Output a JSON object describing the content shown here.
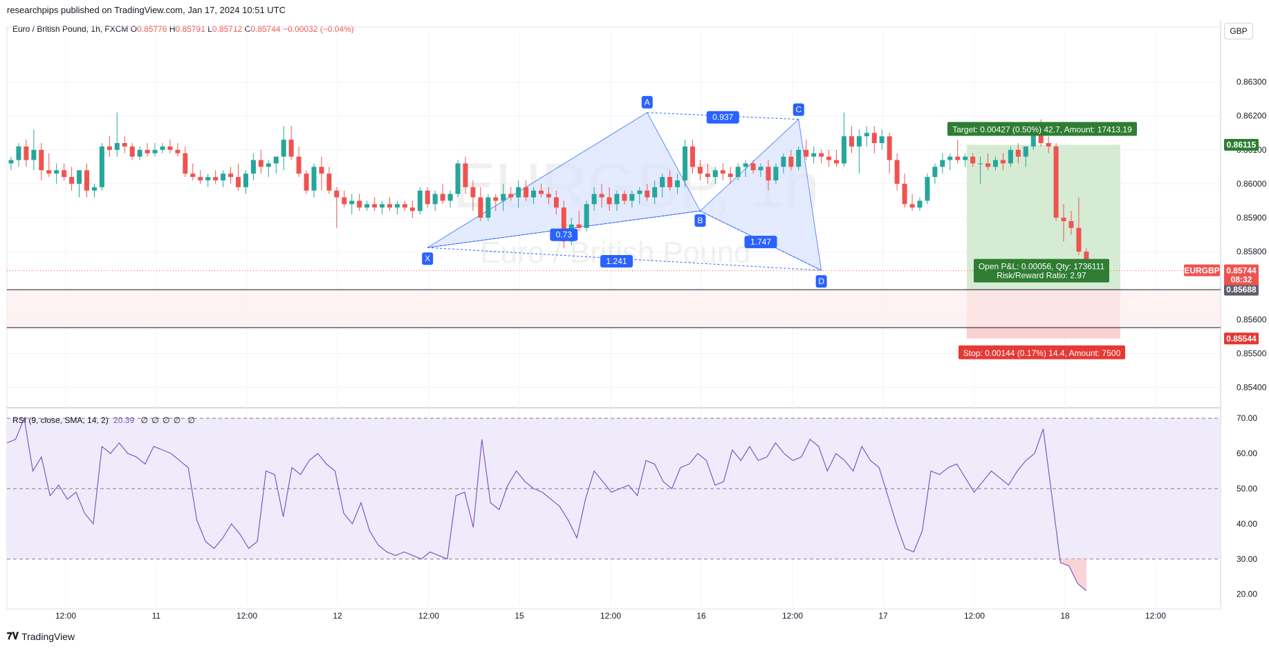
{
  "header": {
    "published": "researchpips published on TradingView.com, Jan 17, 2024 10:51 UTC",
    "symbol": "Euro / British Pound, 1h, FXCM",
    "o_label": "O",
    "o": "0.85776",
    "h_label": "H",
    "h": "0.85791",
    "l_label": "L",
    "l": "0.85712",
    "c_label": "C",
    "c": "0.85744",
    "change": "−0.00032 (−0.04%)",
    "currency": "GBP"
  },
  "watermark": {
    "ticker": "EURGBP, 1h",
    "name": "Euro / British Pound"
  },
  "footer": {
    "brand": "TradingView",
    "brand_mark": "𝟕𝐕"
  },
  "rsi_legend": {
    "label": "RSI (9, close, SMA, 14, 2)",
    "value": "20.39",
    "zeros": "∅ ∅ ∅ ∅",
    "extra": "∅"
  },
  "colors": {
    "up": "#26a69a",
    "down": "#ef5350",
    "pattern": "#2962ff",
    "pattern_fill": "#dbe5ff",
    "target_zone": "#d6ebd4",
    "stop_zone": "#fcd1d1",
    "rsi_line": "#7e57c2",
    "rsi_band": "#f0ebfa"
  },
  "chart_data": [
    {
      "type": "candlestick",
      "title": "Euro / British Pound, 1h, FXCM",
      "ylim": [
        0.8535,
        0.8645
      ],
      "y_ticks": [
        "0.86300",
        "0.86200",
        "0.86100",
        "0.86000",
        "0.85900",
        "0.85800",
        "0.85600",
        "0.85500",
        "0.85400"
      ],
      "x_ticks": [
        "12:00",
        "11",
        "12:00",
        "12",
        "12:00",
        "15",
        "12:00",
        "16",
        "12:00",
        "17",
        "12:00",
        "18",
        "12:00"
      ],
      "grid": true,
      "ohlc": [
        [
          0.8606,
          0.8608,
          0.8604,
          0.8607
        ],
        [
          0.8607,
          0.8612,
          0.8605,
          0.8611
        ],
        [
          0.8611,
          0.8613,
          0.8605,
          0.8607
        ],
        [
          0.8607,
          0.8616,
          0.8604,
          0.861
        ],
        [
          0.861,
          0.8612,
          0.8601,
          0.8604
        ],
        [
          0.8604,
          0.8609,
          0.8602,
          0.8603
        ],
        [
          0.8603,
          0.8606,
          0.86,
          0.8604
        ],
        [
          0.8604,
          0.8606,
          0.8601,
          0.8602
        ],
        [
          0.8602,
          0.8605,
          0.8598,
          0.86
        ],
        [
          0.86,
          0.8603,
          0.8596,
          0.8604
        ],
        [
          0.8604,
          0.8606,
          0.8596,
          0.8598
        ],
        [
          0.8598,
          0.86,
          0.8596,
          0.8599
        ],
        [
          0.8599,
          0.8612,
          0.8598,
          0.8611
        ],
        [
          0.8611,
          0.8614,
          0.8608,
          0.861
        ],
        [
          0.861,
          0.8621,
          0.8608,
          0.8612
        ],
        [
          0.8612,
          0.8614,
          0.8609,
          0.8611
        ],
        [
          0.8611,
          0.8612,
          0.8607,
          0.8608
        ],
        [
          0.8608,
          0.8611,
          0.8607,
          0.861
        ],
        [
          0.861,
          0.8612,
          0.8608,
          0.8609
        ],
        [
          0.8609,
          0.8612,
          0.8608,
          0.861
        ],
        [
          0.861,
          0.8612,
          0.8609,
          0.8611
        ],
        [
          0.8611,
          0.8613,
          0.8609,
          0.861
        ],
        [
          0.861,
          0.8612,
          0.8608,
          0.8609
        ],
        [
          0.8609,
          0.8611,
          0.8602,
          0.8603
        ],
        [
          0.8603,
          0.8606,
          0.8601,
          0.8602
        ],
        [
          0.8602,
          0.8604,
          0.86,
          0.8601
        ],
        [
          0.8601,
          0.8603,
          0.8599,
          0.8602
        ],
        [
          0.8602,
          0.8604,
          0.86,
          0.8601
        ],
        [
          0.8601,
          0.8604,
          0.8599,
          0.8603
        ],
        [
          0.8603,
          0.8605,
          0.86,
          0.8602
        ],
        [
          0.8602,
          0.8606,
          0.8598,
          0.8599
        ],
        [
          0.8599,
          0.8604,
          0.8597,
          0.8603
        ],
        [
          0.8603,
          0.8609,
          0.8601,
          0.8607
        ],
        [
          0.8607,
          0.861,
          0.8603,
          0.8605
        ],
        [
          0.8605,
          0.8607,
          0.8602,
          0.8606
        ],
        [
          0.8606,
          0.8608,
          0.8603,
          0.8608
        ],
        [
          0.8608,
          0.8617,
          0.8604,
          0.8613
        ],
        [
          0.8613,
          0.8617,
          0.8607,
          0.8608
        ],
        [
          0.8608,
          0.8611,
          0.8602,
          0.8603
        ],
        [
          0.8603,
          0.8604,
          0.8597,
          0.8598
        ],
        [
          0.8598,
          0.8606,
          0.8596,
          0.8605
        ],
        [
          0.8605,
          0.8608,
          0.8598,
          0.8603
        ],
        [
          0.8603,
          0.8605,
          0.8597,
          0.8598
        ],
        [
          0.8598,
          0.8599,
          0.8587,
          0.8596
        ],
        [
          0.8596,
          0.8598,
          0.8593,
          0.8594
        ],
        [
          0.8594,
          0.8597,
          0.8591,
          0.8595
        ],
        [
          0.8595,
          0.8597,
          0.8592,
          0.8593
        ],
        [
          0.8593,
          0.8595,
          0.8592,
          0.8594
        ],
        [
          0.8594,
          0.8596,
          0.8592,
          0.8593
        ],
        [
          0.8593,
          0.8595,
          0.8591,
          0.8594
        ],
        [
          0.8594,
          0.8596,
          0.8592,
          0.8593
        ],
        [
          0.8593,
          0.8595,
          0.8591,
          0.8594
        ],
        [
          0.8594,
          0.8595,
          0.8592,
          0.8593
        ],
        [
          0.8593,
          0.8595,
          0.859,
          0.8592
        ],
        [
          0.8592,
          0.8599,
          0.8591,
          0.8598
        ],
        [
          0.8598,
          0.8599,
          0.8593,
          0.8594
        ],
        [
          0.8594,
          0.8598,
          0.8592,
          0.8597
        ],
        [
          0.8597,
          0.86,
          0.8594,
          0.8595
        ],
        [
          0.8595,
          0.8598,
          0.8593,
          0.8597
        ],
        [
          0.8597,
          0.8607,
          0.8596,
          0.8606
        ],
        [
          0.8606,
          0.8608,
          0.8597,
          0.8599
        ],
        [
          0.8599,
          0.8601,
          0.8592,
          0.8596
        ],
        [
          0.8596,
          0.8599,
          0.8589,
          0.859
        ],
        [
          0.859,
          0.8597,
          0.8589,
          0.8596
        ],
        [
          0.8596,
          0.8597,
          0.8592,
          0.8595
        ],
        [
          0.8595,
          0.86,
          0.8592,
          0.8597
        ],
        [
          0.8597,
          0.8599,
          0.8595,
          0.8596
        ],
        [
          0.8596,
          0.8601,
          0.8593,
          0.8599
        ],
        [
          0.8599,
          0.8601,
          0.8595,
          0.8596
        ],
        [
          0.8596,
          0.8599,
          0.8594,
          0.8598
        ],
        [
          0.8598,
          0.86,
          0.8596,
          0.8597
        ],
        [
          0.8597,
          0.8599,
          0.8594,
          0.8596
        ],
        [
          0.8596,
          0.8598,
          0.8591,
          0.8593
        ],
        [
          0.8593,
          0.8595,
          0.8581,
          0.8583
        ],
        [
          0.8583,
          0.859,
          0.8582,
          0.8588
        ],
        [
          0.8588,
          0.8592,
          0.8586,
          0.8587
        ],
        [
          0.8587,
          0.8595,
          0.8586,
          0.8594
        ],
        [
          0.8594,
          0.8599,
          0.8592,
          0.8597
        ],
        [
          0.8597,
          0.86,
          0.8593,
          0.8596
        ],
        [
          0.8596,
          0.8599,
          0.8592,
          0.8594
        ],
        [
          0.8594,
          0.8598,
          0.8592,
          0.8597
        ],
        [
          0.8597,
          0.8598,
          0.8594,
          0.8595
        ],
        [
          0.8595,
          0.8598,
          0.8593,
          0.8597
        ],
        [
          0.8597,
          0.8599,
          0.8594,
          0.8598
        ],
        [
          0.8598,
          0.86,
          0.8595,
          0.8596
        ],
        [
          0.8596,
          0.8601,
          0.8594,
          0.8599
        ],
        [
          0.8599,
          0.8603,
          0.8596,
          0.8602
        ],
        [
          0.8602,
          0.8604,
          0.8598,
          0.8599
        ],
        [
          0.8599,
          0.8603,
          0.8597,
          0.8601
        ],
        [
          0.8601,
          0.8613,
          0.8599,
          0.8611
        ],
        [
          0.8611,
          0.8613,
          0.8603,
          0.8605
        ],
        [
          0.8605,
          0.8607,
          0.8601,
          0.8603
        ],
        [
          0.8603,
          0.8606,
          0.86,
          0.8602
        ],
        [
          0.8602,
          0.8605,
          0.86,
          0.8604
        ],
        [
          0.8604,
          0.8606,
          0.8601,
          0.8603
        ],
        [
          0.8603,
          0.8605,
          0.86,
          0.8602
        ],
        [
          0.8602,
          0.8606,
          0.8601,
          0.8605
        ],
        [
          0.8605,
          0.8607,
          0.8602,
          0.8606
        ],
        [
          0.8606,
          0.8607,
          0.8603,
          0.8604
        ],
        [
          0.8604,
          0.8606,
          0.8602,
          0.8605
        ],
        [
          0.8605,
          0.8607,
          0.8598,
          0.8601
        ],
        [
          0.8601,
          0.8606,
          0.86,
          0.8605
        ],
        [
          0.8605,
          0.8609,
          0.8603,
          0.8608
        ],
        [
          0.8608,
          0.861,
          0.8604,
          0.8605
        ],
        [
          0.8605,
          0.8611,
          0.8604,
          0.861
        ],
        [
          0.861,
          0.8613,
          0.8607,
          0.8608
        ],
        [
          0.8608,
          0.8611,
          0.8606,
          0.8609
        ],
        [
          0.8609,
          0.861,
          0.8606,
          0.8608
        ],
        [
          0.8608,
          0.861,
          0.8605,
          0.8607
        ],
        [
          0.8607,
          0.861,
          0.8605,
          0.8606
        ],
        [
          0.8606,
          0.8621,
          0.8605,
          0.8614
        ],
        [
          0.8614,
          0.8617,
          0.8609,
          0.8611
        ],
        [
          0.8611,
          0.8616,
          0.8603,
          0.8614
        ],
        [
          0.8614,
          0.8617,
          0.8611,
          0.8615
        ],
        [
          0.8615,
          0.8617,
          0.8609,
          0.8612
        ],
        [
          0.8612,
          0.8616,
          0.861,
          0.8614
        ],
        [
          0.8614,
          0.8615,
          0.8603,
          0.8607
        ],
        [
          0.8607,
          0.8609,
          0.8598,
          0.86
        ],
        [
          0.86,
          0.8603,
          0.8593,
          0.8594
        ],
        [
          0.8594,
          0.8597,
          0.8592,
          0.8593
        ],
        [
          0.8593,
          0.8596,
          0.8592,
          0.8595
        ],
        [
          0.8595,
          0.8603,
          0.8594,
          0.8602
        ],
        [
          0.8602,
          0.8606,
          0.86,
          0.8605
        ],
        [
          0.8605,
          0.8609,
          0.8603,
          0.8607
        ],
        [
          0.8607,
          0.8609,
          0.8604,
          0.8608
        ],
        [
          0.8608,
          0.8613,
          0.8606,
          0.8607
        ],
        [
          0.8607,
          0.8609,
          0.8605,
          0.8608
        ],
        [
          0.8608,
          0.8609,
          0.8605,
          0.8606
        ],
        [
          0.8606,
          0.8608,
          0.86,
          0.8606
        ],
        [
          0.8606,
          0.8609,
          0.8604,
          0.8605
        ],
        [
          0.8605,
          0.8608,
          0.8604,
          0.8607
        ],
        [
          0.8607,
          0.8609,
          0.8604,
          0.8606
        ],
        [
          0.8606,
          0.8611,
          0.8605,
          0.861
        ],
        [
          0.861,
          0.8612,
          0.8606,
          0.8608
        ],
        [
          0.8608,
          0.8611,
          0.8605,
          0.8611
        ],
        [
          0.8611,
          0.8617,
          0.861,
          0.8615
        ],
        [
          0.8615,
          0.8619,
          0.8611,
          0.8612
        ],
        [
          0.8612,
          0.8614,
          0.8609,
          0.8611
        ],
        [
          0.8611,
          0.8612,
          0.8589,
          0.859
        ],
        [
          0.859,
          0.8594,
          0.8583,
          0.8589
        ],
        [
          0.8589,
          0.8592,
          0.8585,
          0.8587
        ],
        [
          0.8587,
          0.8596,
          0.8579,
          0.858
        ],
        [
          0.858,
          0.8581,
          0.8573,
          0.8575
        ]
      ]
    },
    {
      "type": "line",
      "title": "RSI (9, close, SMA, 14, 2)",
      "ylim": [
        17,
        72
      ],
      "y_ticks": [
        "70.00",
        "60.00",
        "50.00",
        "40.00",
        "30.00",
        "20.00"
      ],
      "bands": [
        30,
        50,
        70
      ],
      "series": [
        {
          "values": [
            63,
            64,
            70,
            55,
            59,
            48,
            51,
            47,
            49,
            43,
            40,
            62,
            60,
            63,
            60,
            59,
            57,
            62,
            61,
            60,
            58,
            56,
            41,
            35,
            33,
            36,
            40,
            37,
            33,
            35,
            55,
            54,
            42,
            56,
            54,
            58,
            60,
            57,
            55,
            43,
            40,
            46,
            38,
            34,
            32,
            31,
            32,
            31,
            30,
            32,
            31,
            30,
            48,
            49,
            39,
            64,
            46,
            44,
            51,
            55,
            52,
            50,
            49,
            47,
            45,
            41,
            36,
            47,
            55,
            52,
            49,
            50,
            51,
            48,
            58,
            57,
            52,
            50,
            56,
            57,
            60,
            58,
            51,
            52,
            61,
            58,
            62,
            58,
            59,
            63,
            60,
            58,
            59,
            64,
            62,
            55,
            60,
            58,
            55,
            62,
            58,
            56,
            48,
            40,
            33,
            32,
            38,
            55,
            54,
            56,
            57,
            53,
            49,
            52,
            55,
            53,
            51,
            55,
            58,
            60,
            67,
            48,
            29,
            28,
            23,
            21
          ]
        }
      ]
    }
  ],
  "pattern": {
    "points": [
      {
        "label": "X",
        "price": 0.85812
      },
      {
        "label": "A",
        "price": 0.8621
      },
      {
        "label": "B",
        "price": 0.8592
      },
      {
        "label": "C",
        "price": 0.8619
      },
      {
        "label": "D",
        "price": 0.85745
      }
    ],
    "ratios": {
      "xb": "0.73",
      "ac": "0.937",
      "bd": "1.747",
      "xd": "1.241"
    }
  },
  "position": {
    "entry": "0.85688",
    "target": "0.86115",
    "stop": "0.85544",
    "target_text": "Target: 0.00427 (0.50%) 42.7, Amount: 17413.19",
    "stop_text": "Stop: 0.00144 (0.17%) 14.4, Amount: 7500",
    "pnl_text": "Open P&L: 0.00056, Qty: 1736111",
    "rr_text": "Risk/Reward Ratio: 2.97"
  },
  "last_price": {
    "symbol": "EURGBP",
    "price": "0.85744",
    "countdown": "08:32"
  }
}
